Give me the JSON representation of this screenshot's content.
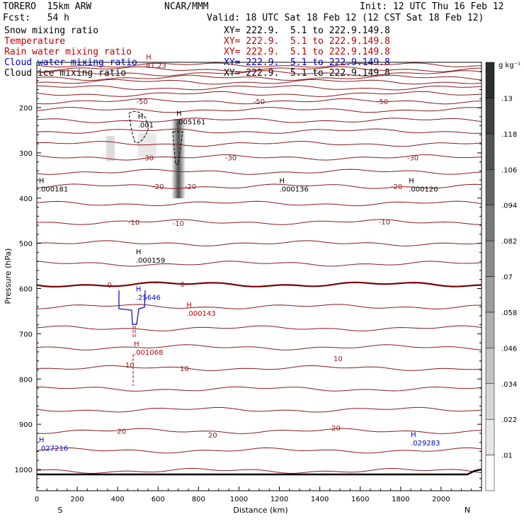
{
  "header": {
    "model": "TORERO  15km ARW",
    "center": "NCAR/MMM",
    "init": "Init: 12 UTC Thu 16 Feb 12",
    "fcst": "Fcst:   54 h",
    "valid": "Valid: 18 UTC Sat 18 Feb 12 (12 CST Sat 18 Feb 12)"
  },
  "fields": [
    {
      "name": "Snow mixing ratio",
      "xy": "XY= 222.9.  5.1 to 222.9.149.8",
      "color": "#000000"
    },
    {
      "name": "Temperature",
      "xy": "XY= 222.9.  5.1 to 222.9.149.8",
      "color": "#c00000"
    },
    {
      "name": "Rain water mixing ratio",
      "xy": "XY= 222.9.  5.1 to 222.9.149.8",
      "color": "#c00000"
    },
    {
      "name": "Cloud water mixing ratio",
      "xy": "XY= 222.9.  5.1 to 222.9.149.8",
      "color": "#0000c8"
    },
    {
      "name": "Cloud ice mixing ratio",
      "xy": "XY= 222.9.  5.1 to 222.9.149.8",
      "color": "#000000"
    }
  ],
  "chart_data": {
    "type": "cross-section",
    "xlabel": "Distance (km)",
    "ylabel": "Pressure (hPa)",
    "xlim": [
      0,
      2200
    ],
    "ylim": [
      1050,
      100
    ],
    "xticks": [
      0,
      200,
      400,
      600,
      800,
      1000,
      1200,
      1400,
      1600,
      1800,
      2000
    ],
    "yticks": [
      200,
      300,
      400,
      500,
      600,
      700,
      800,
      900,
      1000
    ],
    "left_end": "S",
    "right_end": "N",
    "colorbar": {
      "unit": "g kg⁻¹",
      "labels": [
        ".01",
        ".022",
        ".034",
        ".046",
        ".058",
        ".07",
        ".082",
        ".094",
        ".106",
        ".118",
        ".13"
      ]
    },
    "temperature_labels": [
      {
        "text": "-50",
        "x": 520,
        "p": 186
      },
      {
        "text": "-50",
        "x": 1100,
        "p": 186
      },
      {
        "text": "-50",
        "x": 1710,
        "p": 186
      },
      {
        "text": "-30",
        "x": 550,
        "p": 310
      },
      {
        "text": "-30",
        "x": 960,
        "p": 310
      },
      {
        "text": "-30",
        "x": 1860,
        "p": 310
      },
      {
        "text": "-20",
        "x": 600,
        "p": 374
      },
      {
        "text": "-20",
        "x": 760,
        "p": 374
      },
      {
        "text": "-20",
        "x": 1780,
        "p": 374
      },
      {
        "text": "-10",
        "x": 480,
        "p": 453
      },
      {
        "text": "-10",
        "x": 700,
        "p": 455
      },
      {
        "text": "-10",
        "x": 1720,
        "p": 452
      },
      {
        "text": "0",
        "x": 360,
        "p": 591
      },
      {
        "text": "0",
        "x": 720,
        "p": 590
      },
      {
        "text": "10",
        "x": 460,
        "p": 768
      },
      {
        "text": "10",
        "x": 730,
        "p": 776
      },
      {
        "text": "10",
        "x": 1490,
        "p": 754
      },
      {
        "text": "20",
        "x": 420,
        "p": 915
      },
      {
        "text": "20",
        "x": 870,
        "p": 923
      },
      {
        "text": "20",
        "x": 1480,
        "p": 908
      }
    ],
    "extrema": [
      {
        "text": ".000181",
        "x": 10,
        "p": 382,
        "color": "#000000"
      },
      {
        "text": ".005161",
        "x": 690,
        "p": 234,
        "color": "#000000"
      },
      {
        "text": ".001",
        "x": 500,
        "p": 241,
        "color": "#000000"
      },
      {
        "text": ".000136",
        "x": 1200,
        "p": 382,
        "color": "#000000"
      },
      {
        "text": ".000120",
        "x": 1840,
        "p": 382,
        "color": "#000000"
      },
      {
        "text": ".000159",
        "x": 490,
        "p": 540,
        "color": "#000000"
      },
      {
        "text": ".25646",
        "x": 490,
        "p": 622,
        "color": "#0000c8"
      },
      {
        "text": ".000143",
        "x": 740,
        "p": 657,
        "color": "#c00000"
      },
      {
        "text": ".001068",
        "x": 480,
        "p": 743,
        "color": "#c00000"
      },
      {
        "text": ".027216",
        "x": 10,
        "p": 955,
        "color": "#0000c8"
      },
      {
        "text": ".029283",
        "x": 1850,
        "p": 944,
        "color": "#0000c8"
      },
      {
        "text": "81.23",
        "x": 540,
        "p": 109,
        "color": "#c00000"
      }
    ]
  }
}
